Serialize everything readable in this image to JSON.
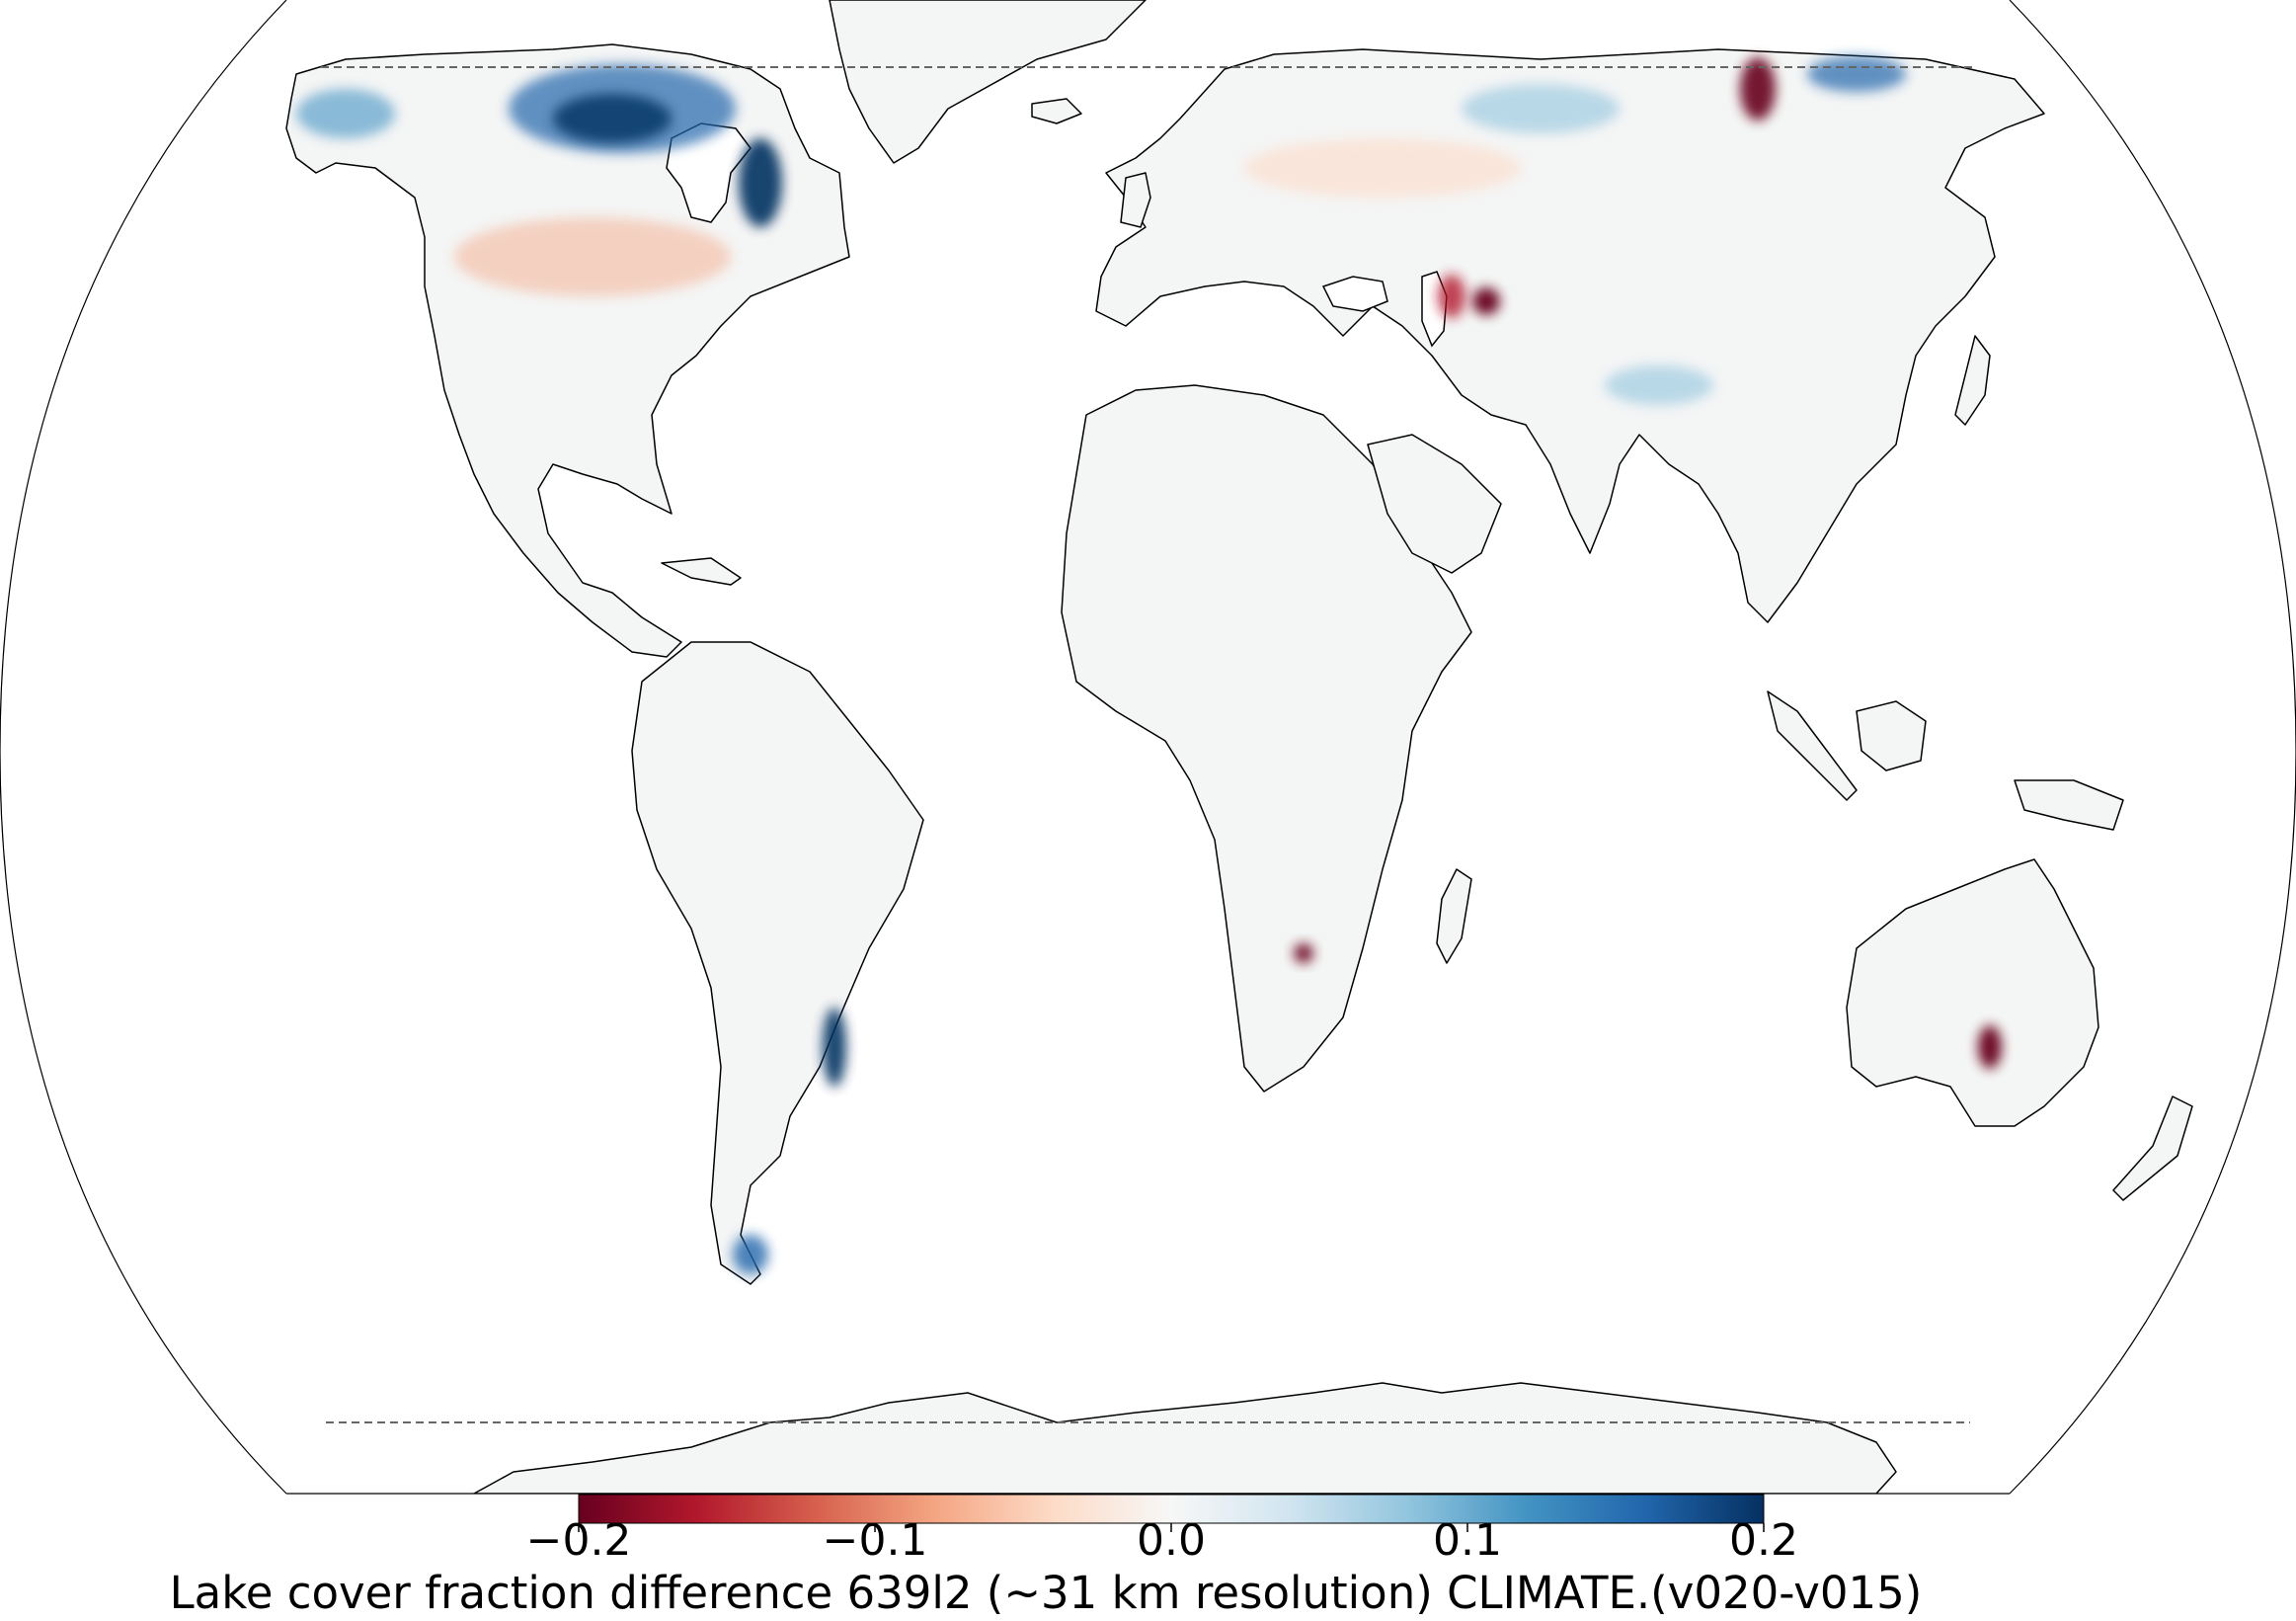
{
  "map": {
    "projection": "Robinson",
    "land_fill": "#f4f5f5",
    "coast_color": "#000000",
    "boundary_line_style": "dashed",
    "continents": [
      "North America",
      "Greenland",
      "South America",
      "Europe",
      "Asia",
      "Africa",
      "Australia",
      "Antarctica"
    ],
    "features": [
      {
        "region": "Canadian Arctic & Shield",
        "sign": "positive",
        "strength": "strong"
      },
      {
        "region": "Hudson Bay east shore (Quebec)",
        "sign": "positive",
        "strength": "very strong"
      },
      {
        "region": "Alaska",
        "sign": "positive",
        "strength": "moderate"
      },
      {
        "region": "Northern Siberia / Taymyr",
        "sign": "positive",
        "strength": "strong"
      },
      {
        "region": "Central Siberia",
        "sign": "negative",
        "strength": "strong"
      },
      {
        "region": "Aral Sea / Caspian region",
        "sign": "negative",
        "strength": "very strong"
      },
      {
        "region": "Mongolia / Northern China",
        "sign": "positive",
        "strength": "weak"
      },
      {
        "region": "Southeastern South America (Uruguay coast)",
        "sign": "positive",
        "strength": "strong"
      },
      {
        "region": "Patagonia",
        "sign": "positive",
        "strength": "strong"
      },
      {
        "region": "Southern Africa (Makgadikgadi)",
        "sign": "negative",
        "strength": "strong"
      },
      {
        "region": "South Australia (Lake Eyre)",
        "sign": "negative",
        "strength": "very strong"
      }
    ]
  },
  "colorbar": {
    "colormap": "RdBu",
    "min": -0.2,
    "max": 0.2,
    "colors": [
      "#67001f",
      "#b2182b",
      "#d6604d",
      "#f4a582",
      "#fddbc7",
      "#f7f7f7",
      "#d1e5f0",
      "#92c5de",
      "#4393c3",
      "#2166ac",
      "#053061"
    ],
    "ticks": [
      {
        "value": -0.2,
        "label": "−0.2"
      },
      {
        "value": -0.1,
        "label": "−0.1"
      },
      {
        "value": 0.0,
        "label": "0.0"
      },
      {
        "value": 0.1,
        "label": "0.1"
      },
      {
        "value": 0.2,
        "label": "0.2"
      }
    ]
  },
  "caption": "Lake cover fraction difference 639l2 (~31 km resolution) CLIMATE.(v020-v015)"
}
